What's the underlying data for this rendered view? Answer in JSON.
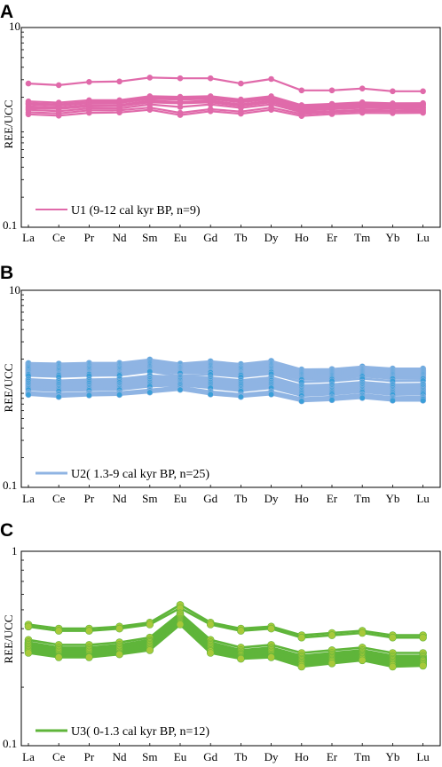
{
  "chart_data": [
    {
      "type": "line",
      "panel_label": "A",
      "ylabel": "REE/UCC",
      "yscale": "log",
      "ylim": [
        0.1,
        10
      ],
      "ytick_labels": [
        "10",
        "",
        "0.1"
      ],
      "categories": [
        "La",
        "Ce",
        "Pr",
        "Nd",
        "Sm",
        "Eu",
        "Gd",
        "Tb",
        "Dy",
        "Ho",
        "Er",
        "Tm",
        "Yb",
        "Lu"
      ],
      "color": "#e06aaa",
      "marker": "circle",
      "legend": "U1 (9-12 cal kyr BP, n=9)",
      "legend_position": "bottom-left",
      "series": [
        {
          "values": [
            2.75,
            2.65,
            2.85,
            2.88,
            3.15,
            3.1,
            3.1,
            2.75,
            3.05,
            2.35,
            2.35,
            2.45,
            2.3,
            2.3
          ]
        },
        {
          "values": [
            1.82,
            1.77,
            1.87,
            1.87,
            2.05,
            2.02,
            2.05,
            1.9,
            2.05,
            1.67,
            1.72,
            1.78,
            1.74,
            1.75
          ]
        },
        {
          "values": [
            1.75,
            1.7,
            1.8,
            1.8,
            1.98,
            1.95,
            1.98,
            1.83,
            1.98,
            1.62,
            1.67,
            1.72,
            1.69,
            1.7
          ]
        },
        {
          "values": [
            1.7,
            1.65,
            1.75,
            1.76,
            1.93,
            1.9,
            1.93,
            1.78,
            1.93,
            1.58,
            1.63,
            1.68,
            1.65,
            1.66
          ]
        },
        {
          "values": [
            1.62,
            1.58,
            1.68,
            1.68,
            1.85,
            1.8,
            1.85,
            1.7,
            1.85,
            1.52,
            1.57,
            1.62,
            1.6,
            1.6
          ]
        },
        {
          "values": [
            1.56,
            1.53,
            1.62,
            1.63,
            1.78,
            1.74,
            1.78,
            1.64,
            1.78,
            1.47,
            1.52,
            1.57,
            1.55,
            1.56
          ]
        },
        {
          "values": [
            1.5,
            1.45,
            1.55,
            1.55,
            1.7,
            1.6,
            1.7,
            1.57,
            1.7,
            1.42,
            1.45,
            1.5,
            1.48,
            1.5
          ]
        },
        {
          "values": [
            1.42,
            1.38,
            1.48,
            1.48,
            1.58,
            1.4,
            1.52,
            1.44,
            1.58,
            1.36,
            1.42,
            1.46,
            1.45,
            1.45
          ]
        },
        {
          "values": [
            1.35,
            1.31,
            1.4,
            1.41,
            1.5,
            1.33,
            1.45,
            1.37,
            1.5,
            1.3,
            1.36,
            1.4,
            1.39,
            1.4
          ]
        }
      ]
    },
    {
      "type": "line",
      "panel_label": "B",
      "ylabel": "REE/UCC",
      "yscale": "log",
      "ylim": [
        0.1,
        10
      ],
      "ytick_labels": [
        "10",
        "",
        "0.1"
      ],
      "categories": [
        "La",
        "Ce",
        "Pr",
        "Nd",
        "Sm",
        "Eu",
        "Gd",
        "Tb",
        "Dy",
        "Ho",
        "Er",
        "Tm",
        "Yb",
        "Lu"
      ],
      "color": "#3a9fd8",
      "line_color": "#8fb4e3",
      "marker": "circle",
      "legend": "U2( 1.3-9 cal kyr BP, n=25)",
      "legend_position": "bottom-left",
      "series": [
        {
          "values": [
            1.82,
            1.8,
            1.83,
            1.83,
            1.98,
            1.8,
            1.9,
            1.78,
            1.92,
            1.57,
            1.58,
            1.68,
            1.6,
            1.6
          ]
        },
        {
          "values": [
            1.78,
            1.76,
            1.79,
            1.79,
            1.93,
            1.76,
            1.85,
            1.74,
            1.87,
            1.54,
            1.55,
            1.64,
            1.57,
            1.57
          ]
        },
        {
          "values": [
            1.74,
            1.72,
            1.75,
            1.75,
            1.88,
            1.72,
            1.81,
            1.7,
            1.83,
            1.51,
            1.52,
            1.61,
            1.54,
            1.54
          ]
        },
        {
          "values": [
            1.7,
            1.68,
            1.71,
            1.71,
            1.84,
            1.68,
            1.77,
            1.66,
            1.79,
            1.48,
            1.49,
            1.58,
            1.51,
            1.51
          ]
        },
        {
          "values": [
            1.66,
            1.64,
            1.67,
            1.67,
            1.8,
            1.65,
            1.73,
            1.63,
            1.75,
            1.45,
            1.46,
            1.55,
            1.48,
            1.48
          ]
        },
        {
          "values": [
            1.62,
            1.6,
            1.63,
            1.63,
            1.76,
            1.62,
            1.69,
            1.59,
            1.71,
            1.42,
            1.43,
            1.52,
            1.45,
            1.45
          ]
        },
        {
          "values": [
            1.58,
            1.56,
            1.59,
            1.59,
            1.72,
            1.59,
            1.65,
            1.55,
            1.67,
            1.39,
            1.4,
            1.49,
            1.42,
            1.42
          ]
        },
        {
          "values": [
            1.54,
            1.52,
            1.55,
            1.55,
            1.68,
            1.56,
            1.61,
            1.51,
            1.63,
            1.36,
            1.37,
            1.46,
            1.39,
            1.39
          ]
        },
        {
          "values": [
            1.5,
            1.48,
            1.51,
            1.51,
            1.64,
            1.53,
            1.57,
            1.47,
            1.59,
            1.33,
            1.34,
            1.43,
            1.36,
            1.36
          ]
        },
        {
          "values": [
            1.46,
            1.44,
            1.47,
            1.47,
            1.6,
            1.5,
            1.53,
            1.44,
            1.55,
            1.3,
            1.31,
            1.4,
            1.33,
            1.33
          ]
        },
        {
          "values": [
            1.43,
            1.41,
            1.44,
            1.44,
            1.56,
            1.47,
            1.5,
            1.41,
            1.51,
            1.27,
            1.28,
            1.37,
            1.3,
            1.3
          ]
        },
        {
          "values": [
            1.4,
            1.38,
            1.41,
            1.41,
            1.53,
            1.44,
            1.47,
            1.38,
            1.48,
            1.24,
            1.25,
            1.34,
            1.27,
            1.27
          ]
        },
        {
          "values": [
            1.36,
            1.33,
            1.36,
            1.37,
            1.5,
            1.35,
            1.4,
            1.32,
            1.42,
            1.17,
            1.2,
            1.27,
            1.2,
            1.21
          ]
        },
        {
          "values": [
            1.25,
            1.21,
            1.24,
            1.26,
            1.36,
            1.32,
            1.3,
            1.22,
            1.31,
            1.08,
            1.11,
            1.17,
            1.11,
            1.12
          ]
        },
        {
          "values": [
            1.2,
            1.16,
            1.19,
            1.2,
            1.3,
            1.29,
            1.25,
            1.17,
            1.26,
            1.04,
            1.07,
            1.13,
            1.07,
            1.08
          ]
        },
        {
          "values": [
            1.15,
            1.12,
            1.15,
            1.16,
            1.26,
            1.25,
            1.21,
            1.13,
            1.22,
            1.0,
            1.03,
            1.09,
            1.03,
            1.04
          ]
        },
        {
          "values": [
            1.11,
            1.08,
            1.1,
            1.11,
            1.21,
            1.22,
            1.17,
            1.09,
            1.17,
            0.97,
            1.0,
            1.05,
            0.99,
            1.0
          ]
        },
        {
          "values": [
            1.07,
            1.04,
            1.06,
            1.07,
            1.17,
            1.18,
            1.13,
            1.05,
            1.13,
            0.94,
            0.97,
            1.02,
            0.96,
            0.97
          ]
        },
        {
          "values": [
            1.04,
            1.01,
            1.03,
            1.04,
            1.13,
            1.15,
            1.09,
            1.01,
            1.09,
            0.91,
            0.94,
            0.99,
            0.93,
            0.94
          ]
        },
        {
          "values": [
            1.01,
            0.98,
            1.0,
            1.01,
            1.09,
            1.12,
            1.05,
            0.98,
            1.05,
            0.88,
            0.91,
            0.96,
            0.9,
            0.91
          ]
        },
        {
          "values": [
            0.98,
            0.95,
            0.97,
            0.98,
            1.06,
            1.09,
            1.02,
            0.95,
            1.02,
            0.85,
            0.88,
            0.93,
            0.87,
            0.88
          ]
        },
        {
          "values": [
            0.92,
            0.89,
            0.91,
            0.92,
            0.98,
            1.05,
            0.94,
            0.88,
            0.94,
            0.8,
            0.83,
            0.88,
            0.82,
            0.83
          ]
        },
        {
          "values": [
            0.9,
            0.87,
            0.89,
            0.9,
            0.96,
            1.02,
            0.92,
            0.86,
            0.92,
            0.78,
            0.81,
            0.86,
            0.8,
            0.81
          ]
        },
        {
          "values": [
            0.88,
            0.84,
            0.87,
            0.88,
            0.93,
            0.99,
            0.89,
            0.84,
            0.89,
            0.76,
            0.79,
            0.83,
            0.78,
            0.79
          ]
        },
        {
          "values": [
            0.87,
            0.83,
            0.86,
            0.87,
            0.92,
            0.98,
            0.88,
            0.83,
            0.88,
            0.75,
            0.77,
            0.81,
            0.76,
            0.76
          ]
        }
      ]
    },
    {
      "type": "line",
      "panel_label": "C",
      "ylabel": "REE/UCC",
      "yscale": "log",
      "ylim": [
        0.1,
        1
      ],
      "ytick_labels": [
        "1",
        "0.1"
      ],
      "categories": [
        "La",
        "Ce",
        "Pr",
        "Nd",
        "Sm",
        "Eu",
        "Gd",
        "Tb",
        "Dy",
        "Ho",
        "Er",
        "Tm",
        "Yb",
        "Lu"
      ],
      "color": "#a8c93a",
      "line_color": "#5fb53a",
      "marker": "circle",
      "legend": "U3( 0-1.3 cal kyr BP, n=12)",
      "legend_position": "bottom-left",
      "series": [
        {
          "values": [
            0.42,
            0.4,
            0.4,
            0.41,
            0.43,
            0.53,
            0.43,
            0.4,
            0.41,
            0.37,
            0.38,
            0.39,
            0.37,
            0.37
          ]
        },
        {
          "values": [
            0.41,
            0.39,
            0.39,
            0.4,
            0.42,
            0.51,
            0.42,
            0.39,
            0.4,
            0.36,
            0.37,
            0.38,
            0.36,
            0.36
          ]
        },
        {
          "values": [
            0.35,
            0.33,
            0.33,
            0.34,
            0.36,
            0.48,
            0.35,
            0.32,
            0.33,
            0.3,
            0.31,
            0.32,
            0.3,
            0.3
          ]
        },
        {
          "values": [
            0.34,
            0.32,
            0.32,
            0.33,
            0.35,
            0.47,
            0.34,
            0.31,
            0.32,
            0.29,
            0.3,
            0.31,
            0.29,
            0.29
          ]
        },
        {
          "values": [
            0.335,
            0.315,
            0.315,
            0.325,
            0.345,
            0.46,
            0.335,
            0.305,
            0.315,
            0.285,
            0.295,
            0.305,
            0.285,
            0.285
          ]
        },
        {
          "values": [
            0.33,
            0.31,
            0.31,
            0.32,
            0.34,
            0.45,
            0.33,
            0.3,
            0.31,
            0.28,
            0.29,
            0.3,
            0.28,
            0.28
          ]
        },
        {
          "values": [
            0.325,
            0.305,
            0.305,
            0.315,
            0.335,
            0.445,
            0.325,
            0.297,
            0.305,
            0.276,
            0.286,
            0.296,
            0.276,
            0.277
          ]
        },
        {
          "values": [
            0.32,
            0.3,
            0.3,
            0.31,
            0.33,
            0.44,
            0.32,
            0.294,
            0.3,
            0.272,
            0.282,
            0.292,
            0.272,
            0.274
          ]
        },
        {
          "values": [
            0.315,
            0.295,
            0.295,
            0.305,
            0.325,
            0.435,
            0.315,
            0.29,
            0.295,
            0.268,
            0.278,
            0.288,
            0.268,
            0.27
          ]
        },
        {
          "values": [
            0.31,
            0.29,
            0.29,
            0.3,
            0.32,
            0.43,
            0.31,
            0.286,
            0.29,
            0.264,
            0.274,
            0.284,
            0.264,
            0.266
          ]
        },
        {
          "values": [
            0.305,
            0.287,
            0.287,
            0.297,
            0.315,
            0.425,
            0.306,
            0.283,
            0.287,
            0.26,
            0.27,
            0.28,
            0.26,
            0.262
          ]
        },
        {
          "values": [
            0.3,
            0.285,
            0.285,
            0.295,
            0.31,
            0.42,
            0.3,
            0.28,
            0.285,
            0.255,
            0.265,
            0.275,
            0.255,
            0.258
          ]
        }
      ]
    }
  ]
}
